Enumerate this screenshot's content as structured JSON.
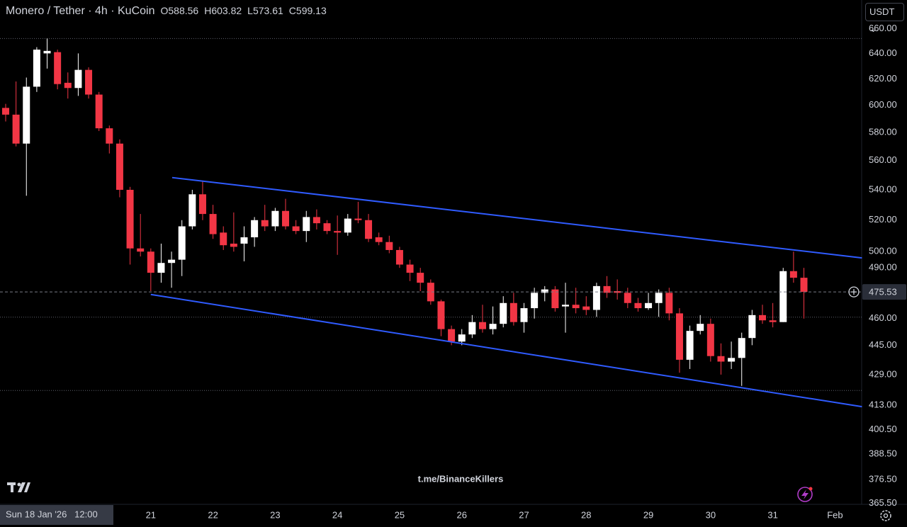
{
  "chart_data": {
    "type": "candlestick",
    "title": "Monero / Tether · 4h · KuCoin",
    "header_ohlc": [
      {
        "label": "O",
        "value": 588.56
      },
      {
        "label": "H",
        "value": 603.82
      },
      {
        "label": "L",
        "value": 573.61
      },
      {
        "label": "C",
        "value": 599.13
      }
    ],
    "currency_button": "USDT",
    "watermark": "t.me/BinanceKillers",
    "crosshair_time": "Sun 18 Jan '26   12:00",
    "categories": [
      null,
      null,
      null,
      null,
      null,
      null,
      null,
      null,
      null,
      null,
      null,
      null,
      null,
      null,
      "21",
      null,
      null,
      null,
      null,
      null,
      "22",
      null,
      null,
      null,
      null,
      null,
      "23",
      null,
      null,
      null,
      null,
      null,
      "24",
      null,
      null,
      null,
      null,
      null,
      "25",
      null,
      null,
      null,
      null,
      null,
      "26",
      null,
      null,
      null,
      null,
      null,
      "27",
      null,
      null,
      null,
      null,
      null,
      "28",
      null,
      null,
      null,
      null,
      null,
      "29",
      null,
      null,
      null,
      null,
      null,
      "30",
      null,
      null,
      null,
      null,
      null,
      "31",
      null,
      null,
      null,
      null,
      null,
      "Feb"
    ],
    "open": [
      598,
      593,
      572,
      614,
      640,
      641,
      617,
      613,
      627,
      608,
      583,
      572,
      540,
      502,
      500,
      487,
      493,
      495,
      516,
      537,
      524,
      512,
      505,
      505,
      509,
      520,
      516,
      526,
      516,
      513,
      522,
      518,
      513,
      512,
      521,
      520,
      509,
      506,
      501,
      492,
      487,
      481,
      470,
      454,
      447,
      451,
      458,
      454,
      457,
      469,
      458,
      466,
      475,
      477,
      467,
      468,
      467,
      465,
      479,
      476,
      475,
      469,
      466,
      469,
      475,
      463,
      437,
      453,
      457,
      439,
      436,
      438,
      449,
      462,
      459,
      458,
      488,
      484,
      null,
      null,
      null
    ],
    "high": [
      601,
      618,
      621,
      645,
      652,
      643,
      625,
      640,
      629,
      610,
      585,
      575,
      542,
      524,
      502,
      505,
      500,
      520,
      540,
      546,
      530,
      516,
      525,
      516,
      522,
      530,
      528,
      534,
      520,
      526,
      527,
      520,
      523,
      524,
      532,
      524,
      512,
      510,
      503,
      495,
      490,
      483,
      471,
      456,
      454,
      462,
      468,
      467,
      473,
      475,
      469,
      478,
      479,
      479,
      481,
      478,
      473,
      481,
      485,
      483,
      478,
      472,
      475,
      477,
      478,
      466,
      456,
      462,
      460,
      446,
      447,
      452,
      465,
      468,
      469,
      490,
      500,
      490,
      null,
      null,
      null
    ],
    "low": [
      588,
      570,
      536,
      610,
      628,
      612,
      605,
      607,
      605,
      581,
      565,
      535,
      492,
      497,
      476,
      481,
      478,
      485,
      514,
      520,
      508,
      501,
      500,
      494,
      503,
      513,
      513,
      514,
      511,
      506,
      514,
      511,
      498,
      510,
      518,
      506,
      504,
      499,
      490,
      482,
      476,
      468,
      450,
      445,
      445,
      449,
      452,
      451,
      455,
      456,
      452,
      460,
      470,
      464,
      452,
      463,
      462,
      461,
      472,
      471,
      466,
      464,
      465,
      461,
      459,
      430,
      432,
      451,
      436,
      429,
      432,
      423,
      445,
      457,
      455,
      458,
      481,
      460,
      null,
      null,
      null
    ],
    "close": [
      593,
      572,
      614,
      643,
      642,
      616,
      613,
      627,
      608,
      583,
      572,
      540,
      502,
      500,
      487,
      493,
      495,
      516,
      537,
      524,
      511,
      504,
      503,
      509,
      520,
      516,
      526,
      516,
      513,
      522,
      518,
      513,
      512,
      521,
      520,
      508,
      506,
      501,
      492,
      487,
      481,
      470,
      454,
      447,
      451,
      458,
      454,
      457,
      469,
      458,
      466,
      475,
      477,
      466,
      468,
      466,
      465,
      479,
      475,
      475,
      469,
      466,
      469,
      475,
      463,
      437,
      453,
      457,
      439,
      436,
      438,
      449,
      462,
      459,
      458,
      488,
      484,
      475.53,
      null,
      null,
      null
    ],
    "up_color": "#ffffff",
    "down_color": "#f23645",
    "log_scale": true,
    "grid": false,
    "ylim": [
      365,
      684
    ],
    "yticks": [
      {
        "value": 365.5,
        "label": "365.50"
      },
      {
        "value": 376.5,
        "label": "376.50"
      },
      {
        "value": 388.5,
        "label": "388.50"
      },
      {
        "value": 400.5,
        "label": "400.50"
      },
      {
        "value": 413,
        "label": "413.00"
      },
      {
        "value": 429,
        "label": "429.00"
      },
      {
        "value": 445,
        "label": "445.00"
      },
      {
        "value": 460,
        "label": "460.00"
      },
      {
        "value": 490,
        "label": "490.00"
      },
      {
        "value": 500,
        "label": "500.00"
      },
      {
        "value": 520,
        "label": "520.00"
      },
      {
        "value": 540,
        "label": "540.00"
      },
      {
        "value": 560,
        "label": "560.00"
      },
      {
        "value": 580,
        "label": "580.00"
      },
      {
        "value": 600,
        "label": "600.00"
      },
      {
        "value": 620,
        "label": "620.00"
      },
      {
        "value": 640,
        "label": "640.00"
      },
      {
        "value": 660,
        "label": "660.00"
      }
    ],
    "current_price": 475.53,
    "horizontal_lines": [
      652,
      460.8,
      420.6
    ],
    "trendlines": [
      {
        "color": "#2f5bff",
        "points": [
          [
            16.06,
            548.3
          ],
          [
            82.6,
            496.1
          ]
        ]
      },
      {
        "color": "#2f5bff",
        "points": [
          [
            14.0,
            474.0
          ],
          [
            82.6,
            412.2
          ]
        ]
      }
    ]
  }
}
